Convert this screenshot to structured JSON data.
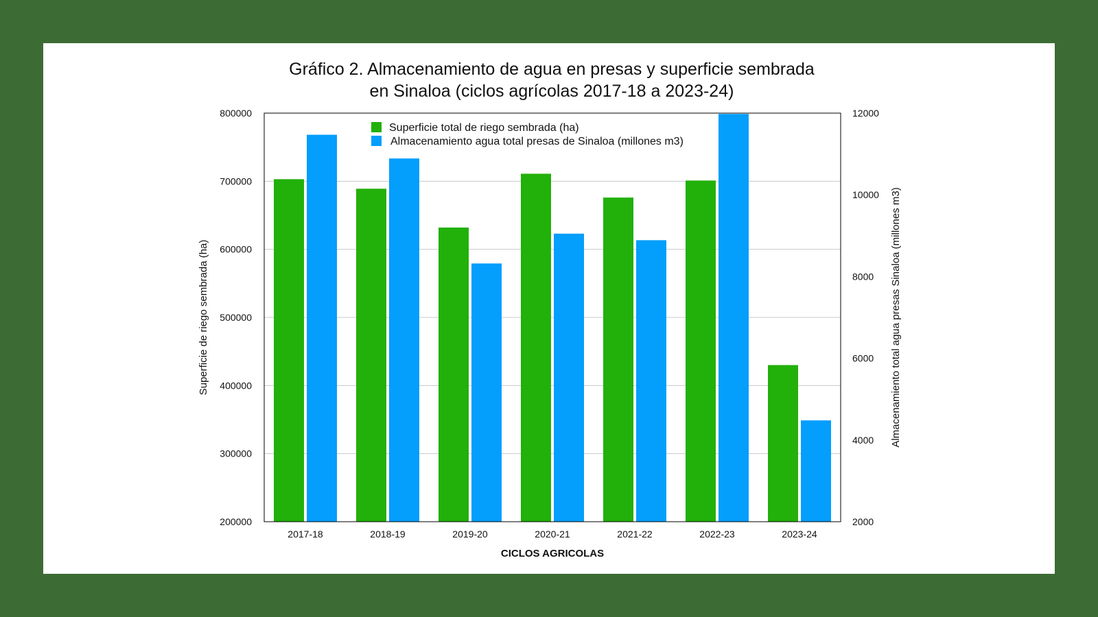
{
  "chart_data": {
    "type": "bar",
    "title_lines": [
      "Gráfico 2. Almacenamiento de agua en presas y superficie sembrada",
      "en Sinaloa (ciclos agrícolas 2017-18 a 2023-24)"
    ],
    "categories": [
      "2017-18",
      "2018-19",
      "2019-20",
      "2020-21",
      "2021-22",
      "2022-23",
      "2023-24"
    ],
    "xlabel": "CICLOS AGRICOLAS",
    "ylabel_left": "Superficie de riego sembrada (ha)",
    "ylabel_right": "Almacenamiento total agua presas Sinaloa (millones m3)",
    "ylim_left": [
      200000,
      800000
    ],
    "yticks_left": [
      "200000",
      "300000",
      "400000",
      "500000",
      "600000",
      "700000",
      "800000"
    ],
    "ylim_right": [
      2000,
      12000
    ],
    "yticks_right": [
      "2000",
      "4000",
      "6000",
      "8000",
      "10000",
      "12000"
    ],
    "grid": true,
    "legend_position": "top-center",
    "series": [
      {
        "name": "Superficie total de riego sembrada (ha)",
        "axis": "left",
        "color": "#22b00a",
        "values": [
          703000,
          689000,
          632000,
          711000,
          676000,
          701000,
          430000
        ]
      },
      {
        "name": "Almacenamiento agua total presas de Sinaloa (millones m3)",
        "axis": "right",
        "color": "#049efc",
        "values": [
          11470,
          10890,
          8320,
          9050,
          8890,
          11980,
          4480
        ]
      }
    ]
  }
}
